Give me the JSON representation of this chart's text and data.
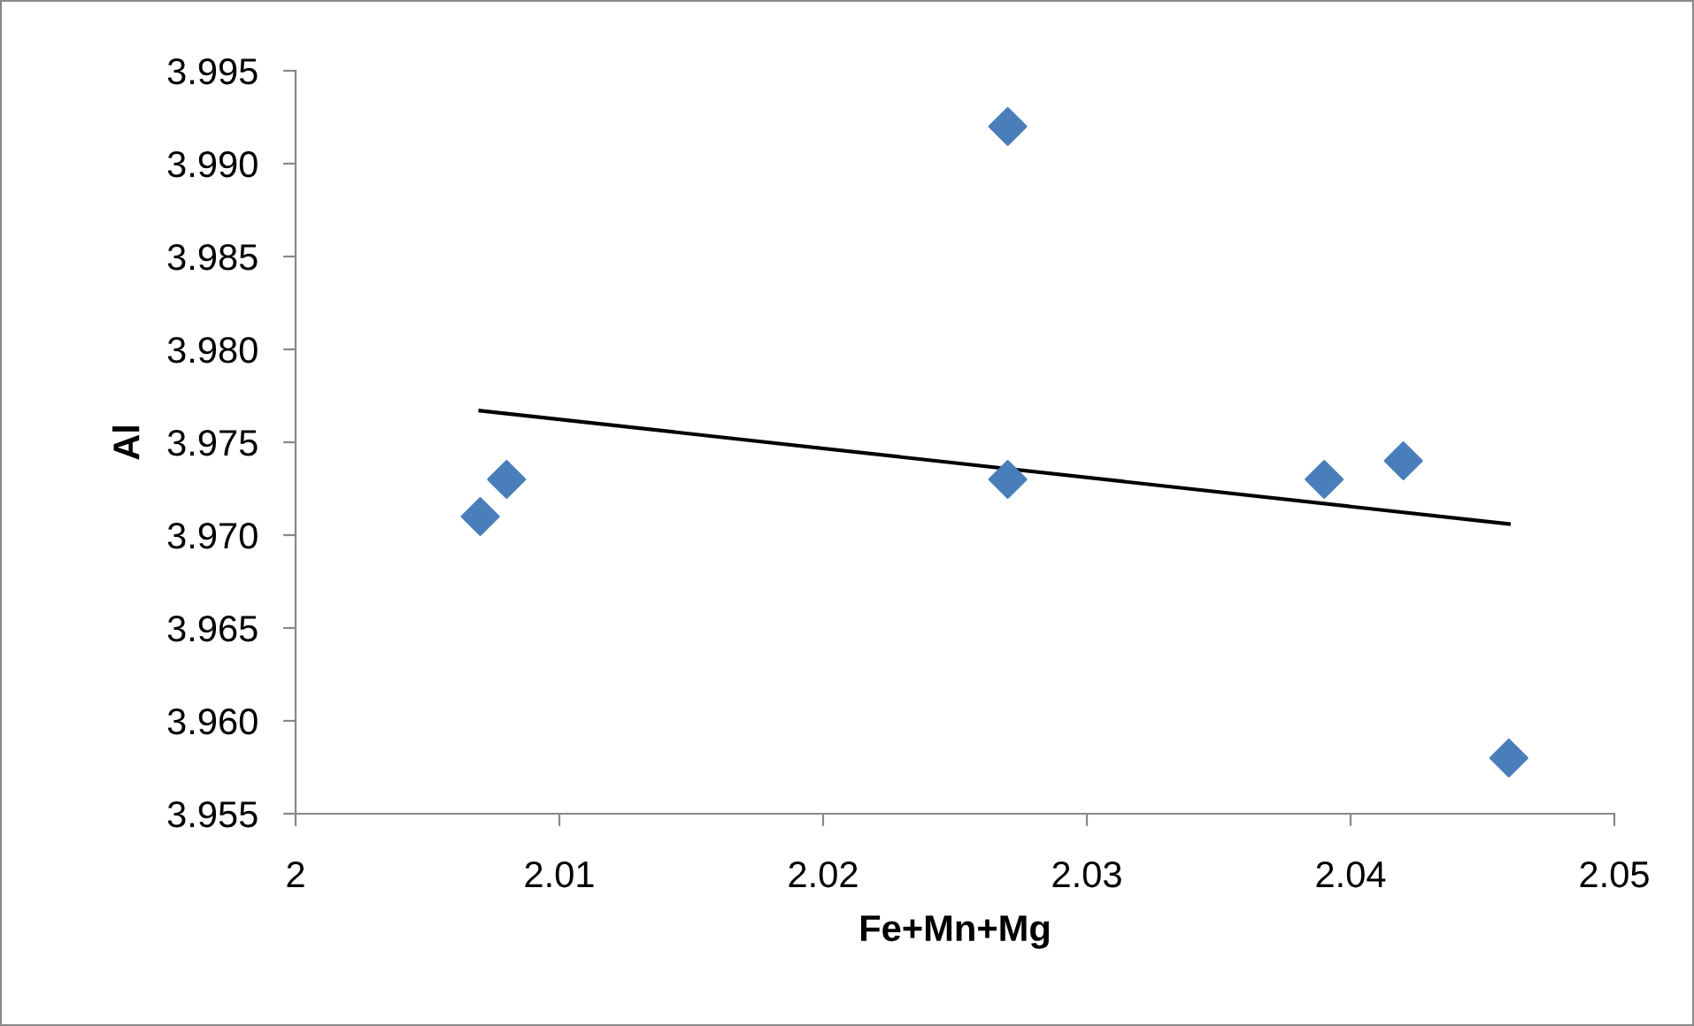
{
  "chart_data": {
    "type": "scatter",
    "xlabel": "Fe+Mn+Mg",
    "ylabel": "Al",
    "xlim": [
      2,
      2.05
    ],
    "xticks": [
      2,
      2.01,
      2.02,
      2.03,
      2.04,
      2.05
    ],
    "ylim": [
      3.955,
      3.995
    ],
    "yticks": [
      {
        "value": 3.955,
        "label": "3.955"
      },
      {
        "value": 3.96,
        "label": "3.960"
      },
      {
        "value": 3.965,
        "label": "3.965"
      },
      {
        "value": 3.97,
        "label": "3.970"
      },
      {
        "value": 3.975,
        "label": "3.975"
      },
      {
        "value": 3.98,
        "label": "3.980"
      },
      {
        "value": 3.985,
        "label": "3.985"
      },
      {
        "value": 3.99,
        "label": "3.990"
      },
      {
        "value": 3.995,
        "label": "3.995"
      }
    ],
    "grid": false,
    "legend": false,
    "marker": "diamond",
    "series": [
      {
        "color": "#4a7ebb",
        "x": [
          2.007,
          2.008,
          2.027,
          2.027,
          2.039,
          2.042,
          2.046
        ],
        "values": [
          3.971,
          3.973,
          3.992,
          3.973,
          3.973,
          3.974,
          3.958
        ]
      },
      {
        "type": "line",
        "color": "#000000",
        "x": [
          2.007,
          2.046
        ],
        "values": [
          3.9767,
          3.9706
        ],
        "marker": "none",
        "line_style": "solid"
      }
    ]
  }
}
